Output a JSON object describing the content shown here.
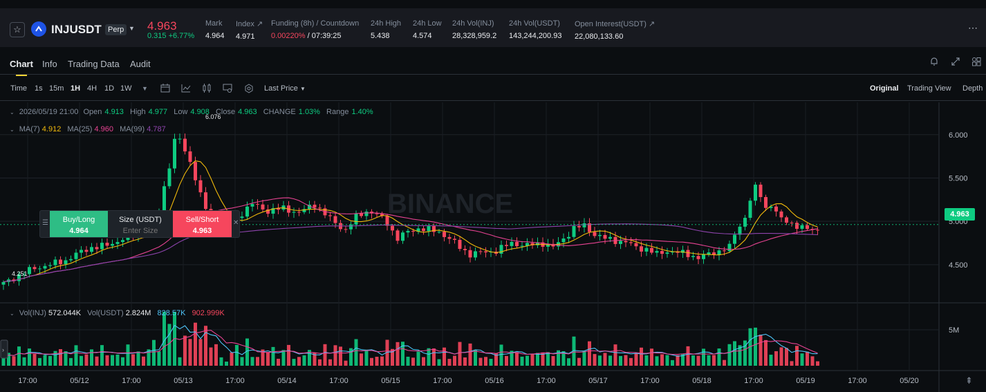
{
  "ticker": {
    "symbol": "INJUSDT",
    "contract": "Perp",
    "last_price": "4.963",
    "change": "0.315 +6.77%",
    "stats": [
      {
        "label": "Mark",
        "value": "4.964"
      },
      {
        "label": "Index ↗",
        "value": "4.971"
      },
      {
        "label": "Funding (8h) / Countdown",
        "value_red": "0.00220%",
        "value": " / 07:39:25"
      },
      {
        "label": "24h High",
        "value": "5.438"
      },
      {
        "label": "24h Low",
        "value": "4.574"
      },
      {
        "label": "24h Vol(INJ)",
        "value": "28,328,959.2"
      },
      {
        "label": "24h Vol(USDT)",
        "value": "143,244,200.93"
      },
      {
        "label": "Open Interest(USDT) ↗",
        "value": "22,080,133.60"
      }
    ]
  },
  "tabs": [
    "Chart",
    "Info",
    "Trading Data",
    "Audit"
  ],
  "toolbar": {
    "intervals": [
      "Time",
      "1s",
      "15m",
      "1H",
      "4H",
      "1D",
      "1W"
    ],
    "active_interval": "1H",
    "price_type": "Last Price",
    "views": [
      "Original",
      "Trading View",
      "Depth"
    ]
  },
  "ohlc": {
    "datetime": "2026/05/19 21:00",
    "open_label": "Open",
    "open": "4.913",
    "high_label": "High",
    "high": "4.977",
    "low_label": "Low",
    "low": "4.908",
    "close_label": "Close",
    "close": "4.963",
    "change_label": "CHANGE",
    "change": "1.03%",
    "range_label": "Range",
    "range": "1.40%"
  },
  "ma": {
    "ma7_label": "MA(7)",
    "ma7": "4.912",
    "ma25_label": "MA(25)",
    "ma25": "4.960",
    "ma99_label": "MA(99)",
    "ma99": "4.787"
  },
  "volume": {
    "inj_label": "Vol(INJ)",
    "inj": "572.044K",
    "usdt_label": "Vol(USDT)",
    "usdt": "2.824M",
    "ma1": "828.57K",
    "ma2": "902.999K"
  },
  "order": {
    "buy_label": "Buy/Long",
    "buy_price": "4.964",
    "size_label": "Size (USDT)",
    "size_placeholder": "Enter Size",
    "sell_label": "Sell/Short",
    "sell_price": "4.963"
  },
  "watermark": "BINANCE",
  "price_axis": [
    "6.000",
    "5.500",
    "5.000",
    "4.500"
  ],
  "volume_axis": [
    "5M"
  ],
  "time_axis": [
    "17:00",
    "05/12",
    "17:00",
    "05/13",
    "17:00",
    "05/14",
    "17:00",
    "05/15",
    "17:00",
    "05/16",
    "17:00",
    "05/17",
    "17:00",
    "05/18",
    "17:00",
    "05/19",
    "17:00",
    "05/20"
  ],
  "chart_labels": {
    "high_mark": "6.076",
    "low_mark": "4.251",
    "current_price": "4.963"
  },
  "colors": {
    "up": "#0ecb81",
    "down": "#f6465d",
    "ma7": "#f0b90b",
    "ma25": "#e84393",
    "ma99": "#8e44ad",
    "vol_ma1": "#4fc3f7",
    "vol_ma2": "#e84393"
  },
  "chart_data": {
    "type": "candlestick",
    "interval": "1H",
    "ylim": [
      4.1,
      6.15
    ],
    "price_anchors_hour_value": [
      [
        0,
        4.28
      ],
      [
        3,
        4.38
      ],
      [
        6,
        4.46
      ],
      [
        9,
        4.5
      ],
      [
        12,
        4.55
      ],
      [
        14,
        4.62
      ],
      [
        17,
        4.7
      ],
      [
        20,
        4.72
      ],
      [
        23,
        4.8
      ],
      [
        26,
        4.86
      ],
      [
        28,
        4.92
      ],
      [
        30,
        5.1
      ],
      [
        31,
        5.4
      ],
      [
        32,
        5.65
      ],
      [
        33,
        5.92
      ],
      [
        34,
        5.95
      ],
      [
        35,
        5.8
      ],
      [
        36,
        5.7
      ],
      [
        37,
        5.5
      ],
      [
        38,
        5.3
      ],
      [
        39,
        5.15
      ],
      [
        40,
        5.05
      ],
      [
        42,
        4.98
      ],
      [
        44,
        4.95
      ],
      [
        46,
        5.1
      ],
      [
        48,
        5.2
      ],
      [
        51,
        5.12
      ],
      [
        54,
        5.15
      ],
      [
        57,
        5.1
      ],
      [
        60,
        5.2
      ],
      [
        62,
        5.08
      ],
      [
        64,
        4.98
      ],
      [
        66,
        4.9
      ],
      [
        68,
        5.05
      ],
      [
        70,
        5.12
      ],
      [
        72,
        5.08
      ],
      [
        74,
        4.98
      ],
      [
        76,
        4.8
      ],
      [
        78,
        4.88
      ],
      [
        80,
        4.92
      ],
      [
        82,
        4.9
      ],
      [
        84,
        4.88
      ],
      [
        86,
        4.8
      ],
      [
        88,
        4.7
      ],
      [
        90,
        4.62
      ],
      [
        92,
        4.64
      ],
      [
        95,
        4.66
      ],
      [
        98,
        4.75
      ],
      [
        101,
        4.72
      ],
      [
        104,
        4.75
      ],
      [
        106,
        4.7
      ],
      [
        108,
        4.8
      ],
      [
        110,
        4.92
      ],
      [
        112,
        4.95
      ],
      [
        114,
        4.85
      ],
      [
        116,
        4.8
      ],
      [
        118,
        4.78
      ],
      [
        120,
        4.76
      ],
      [
        122,
        4.7
      ],
      [
        124,
        4.68
      ],
      [
        126,
        4.62
      ],
      [
        128,
        4.66
      ],
      [
        130,
        4.64
      ],
      [
        132,
        4.62
      ],
      [
        134,
        4.58
      ],
      [
        136,
        4.62
      ],
      [
        138,
        4.66
      ],
      [
        140,
        4.7
      ],
      [
        141,
        4.85
      ],
      [
        143,
        5.05
      ],
      [
        144,
        5.25
      ],
      [
        145,
        5.38
      ],
      [
        146,
        5.3
      ],
      [
        147,
        5.15
      ],
      [
        148,
        5.2
      ],
      [
        149,
        5.1
      ],
      [
        150,
        5.02
      ],
      [
        152,
        4.98
      ],
      [
        154,
        4.92
      ],
      [
        156,
        4.9
      ],
      [
        157,
        4.963
      ]
    ]
  }
}
